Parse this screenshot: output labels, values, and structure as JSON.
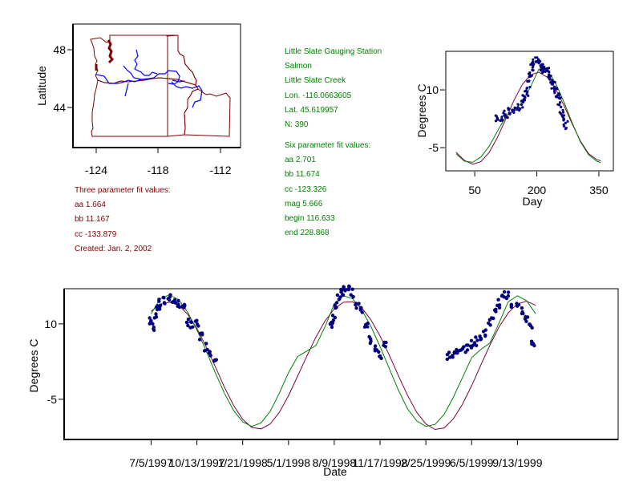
{
  "station_info": {
    "lines": [
      "Little Slate  Gauging Station",
      "Salmon",
      "Little Slate Creek",
      "Lon. -116.0663605",
      "Lat. 45.619957",
      "N: 390"
    ],
    "six_param": {
      "title": "Six parameter fit values:",
      "lines": [
        "aa 2.701",
        "bb 11.674",
        "cc -123.326",
        "mag 5.666",
        "begin 116.633",
        "end 228.868"
      ]
    }
  },
  "three_param": {
    "title": "Three parameter fit values:",
    "lines": [
      "aa 1.664",
      "bb 11.167",
      "cc -133.879",
      "Created:   Jan. 2, 2002"
    ]
  },
  "colors": {
    "text_green": "#008000",
    "text_maroon": "#800000",
    "border": "#800000",
    "river": "#0000ff",
    "points": "#000080",
    "fit3": "#800040",
    "fit6": "#008000"
  },
  "chart_data": [
    {
      "type": "map",
      "title": "",
      "xlabel": "",
      "ylabel": "Latitude",
      "x_ticks": [
        "-124",
        "-118",
        "-112"
      ],
      "y_ticks": [
        "48",
        "44"
      ],
      "xlim": [
        -126.3,
        -110.5
      ],
      "ylim": [
        41.5,
        49.6
      ],
      "layers": [
        "state borders (WA, OR, ID)",
        "rivers (Columbia, Snake)"
      ]
    },
    {
      "type": "scatter",
      "title": "",
      "xlabel": "Day",
      "ylabel": "Degrees C",
      "x_ticks": [
        "50",
        "200",
        "350"
      ],
      "y_ticks": [
        "10",
        "-5"
      ],
      "xlim": [
        -20,
        385
      ],
      "ylim": [
        -11,
        20
      ],
      "series": [
        {
          "name": "observed",
          "kind": "points",
          "x": [
            105,
            115,
            125,
            135,
            145,
            155,
            165,
            170,
            175,
            180,
            185,
            190,
            195,
            200,
            205,
            210,
            215,
            220,
            225,
            230,
            235,
            240,
            245,
            250,
            255,
            260,
            265,
            270
          ],
          "y": [
            2.5,
            3.0,
            3.5,
            4.3,
            5.0,
            5.5,
            6.5,
            7.5,
            9.0,
            11.5,
            14.5,
            16.0,
            17.0,
            17.5,
            16.5,
            16.0,
            15.5,
            15.0,
            15.5,
            14.5,
            12.5,
            11.0,
            10.0,
            8.5,
            7.0,
            4.5,
            3.0,
            1.0
          ]
        },
        {
          "name": "three-parameter fit",
          "kind": "line",
          "x": [
            5,
            25,
            45,
            65,
            85,
            105,
            125,
            145,
            165,
            185,
            205,
            225,
            245,
            265,
            285,
            305,
            325,
            345,
            355
          ],
          "y": [
            -6.2,
            -8.3,
            -9.3,
            -8.6,
            -6.2,
            -2.3,
            2.4,
            7.3,
            11.4,
            13.9,
            14.6,
            13.3,
            10.3,
            6.1,
            1.3,
            -3.2,
            -6.5,
            -8.1,
            -8.4
          ]
        },
        {
          "name": "six-parameter fit",
          "kind": "line",
          "x": [
            5,
            25,
            45,
            65,
            85,
            105,
            125,
            145,
            165,
            185,
            205,
            225,
            245,
            265,
            285,
            305,
            325,
            345,
            355
          ],
          "y": [
            -6.6,
            -8.5,
            -8.8,
            -7.4,
            -4.6,
            -0.7,
            3.0,
            4.9,
            6.7,
            10.8,
            15.4,
            15.2,
            11.8,
            7.0,
            1.6,
            -3.4,
            -6.8,
            -8.5,
            -8.9
          ]
        }
      ]
    },
    {
      "type": "scatter",
      "title": "",
      "xlabel": "Date",
      "ylabel": "Degrees C",
      "x_ticks": [
        "7/5/1997",
        "10/13/1997",
        "1/21/1998",
        "5/1/1998",
        "8/9/1998",
        "11/17/1998",
        "2/25/1999",
        "6/5/1999",
        "9/13/1999"
      ],
      "y_ticks": [
        "10",
        "-5"
      ],
      "note": "x in days since 7/5/1997; each tick is 100 days apart",
      "xlim": [
        -190,
        1020
      ],
      "ylim": [
        -13,
        17
      ],
      "series": [
        {
          "name": "observed",
          "kind": "points",
          "x": [
            0,
            5,
            10,
            15,
            20,
            30,
            40,
            50,
            60,
            70,
            80,
            90,
            100,
            110,
            120,
            130,
            140,
            395,
            400,
            405,
            410,
            415,
            420,
            430,
            440,
            450,
            460,
            470,
            480,
            490,
            500,
            510,
            650,
            660,
            670,
            680,
            690,
            700,
            710,
            720,
            730,
            740,
            750,
            760,
            770,
            780,
            790,
            800,
            810,
            820,
            830,
            835
          ],
          "y": [
            10.5,
            9.5,
            12.0,
            13.5,
            14.0,
            14.5,
            15.5,
            14.5,
            14.0,
            13.0,
            10.5,
            9.5,
            10.0,
            7.5,
            5.5,
            4.5,
            3.5,
            9.5,
            11.0,
            13.5,
            15.0,
            16.0,
            16.5,
            17.0,
            16.0,
            14.0,
            12.5,
            10.0,
            7.0,
            5.5,
            4.0,
            5.5,
            3.5,
            4.0,
            4.5,
            5.0,
            5.0,
            6.0,
            6.5,
            7.5,
            8.5,
            10.5,
            12.0,
            14.0,
            16.0,
            15.5,
            14.0,
            13.5,
            12.5,
            11.0,
            10.0,
            6.0
          ]
        },
        {
          "name": "three-parameter fit",
          "kind": "line",
          "x": [
            0,
            20,
            40,
            60,
            80,
            100,
            120,
            140,
            160,
            180,
            200,
            220,
            240,
            260,
            280,
            300,
            320,
            340,
            360,
            380,
            400,
            420,
            440,
            460,
            480,
            500,
            520,
            540,
            560,
            580,
            600,
            620,
            640,
            660,
            680,
            700,
            720,
            740,
            760,
            780,
            800,
            820,
            840
          ],
          "y": [
            12.5,
            13.9,
            14.3,
            13.7,
            11.9,
            9.1,
            5.5,
            1.5,
            -2.6,
            -6.2,
            -9.0,
            -10.6,
            -10.9,
            -9.9,
            -7.6,
            -4.3,
            -0.4,
            3.6,
            7.4,
            10.6,
            13.0,
            14.3,
            14.4,
            13.2,
            10.8,
            7.6,
            3.8,
            -0.3,
            -4.2,
            -7.6,
            -9.9,
            -11.0,
            -10.7,
            -8.9,
            -6.0,
            -2.3,
            1.8,
            5.8,
            9.4,
            12.2,
            14.0,
            14.5,
            13.7
          ]
        },
        {
          "name": "six-parameter fit",
          "kind": "line",
          "x": [
            0,
            20,
            40,
            60,
            80,
            100,
            120,
            140,
            160,
            180,
            200,
            220,
            240,
            260,
            280,
            300,
            320,
            340,
            360,
            380,
            400,
            420,
            440,
            460,
            480,
            500,
            520,
            540,
            560,
            580,
            600,
            620,
            640,
            660,
            680,
            700,
            720,
            740,
            760,
            780,
            800,
            820,
            840
          ],
          "y": [
            12.0,
            15.0,
            15.8,
            14.8,
            12.3,
            8.8,
            4.7,
            0.3,
            -3.8,
            -7.2,
            -9.5,
            -10.4,
            -9.7,
            -7.4,
            -3.8,
            0.3,
            3.5,
            4.6,
            5.7,
            9.5,
            14.0,
            15.6,
            15.0,
            12.8,
            9.5,
            5.5,
            1.1,
            -3.2,
            -6.9,
            -9.3,
            -10.4,
            -10.0,
            -8.0,
            -4.6,
            -0.7,
            3.3,
            4.9,
            6.2,
            10.2,
            14.4,
            15.6,
            14.6,
            12.0
          ]
        }
      ]
    }
  ]
}
